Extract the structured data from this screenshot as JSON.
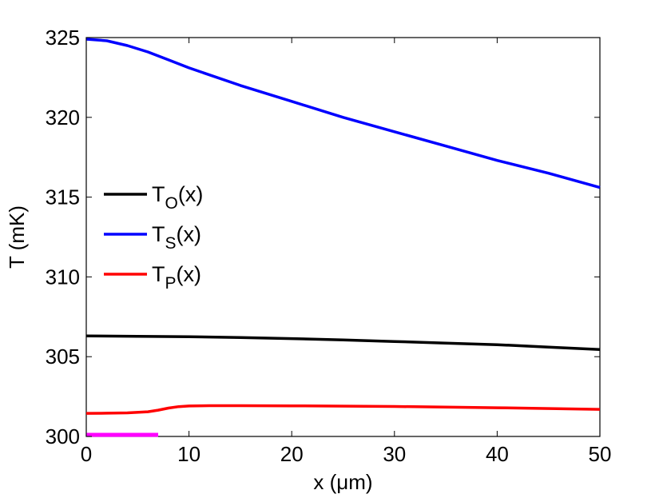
{
  "chart_data": {
    "type": "line",
    "title": "",
    "xlabel": "x (μm)",
    "ylabel": "T (mK)",
    "xlim": [
      0,
      50
    ],
    "ylim": [
      300,
      325
    ],
    "xticks": [
      0,
      10,
      20,
      30,
      40,
      50
    ],
    "yticks": [
      300,
      305,
      310,
      315,
      320,
      325
    ],
    "grid": false,
    "legend_position": "left",
    "series": [
      {
        "key": "TO",
        "legend": {
          "main": "T",
          "sub": "O",
          "suffix": "(x)"
        },
        "color": "#000000",
        "x": [
          0,
          5,
          10,
          15,
          20,
          25,
          30,
          35,
          40,
          45,
          50
        ],
        "y": [
          306.3,
          306.28,
          306.25,
          306.2,
          306.13,
          306.05,
          305.95,
          305.85,
          305.75,
          305.6,
          305.45
        ]
      },
      {
        "key": "TS",
        "legend": {
          "main": "T",
          "sub": "S",
          "suffix": "(x)"
        },
        "color": "#0000ff",
        "x": [
          0,
          2,
          4,
          6,
          8,
          10,
          15,
          20,
          25,
          30,
          35,
          40,
          45,
          50
        ],
        "y": [
          324.9,
          324.8,
          324.5,
          324.1,
          323.6,
          323.1,
          322.0,
          321.0,
          320.0,
          319.1,
          318.2,
          317.3,
          316.5,
          315.6
        ]
      },
      {
        "key": "TP",
        "legend": {
          "main": "T",
          "sub": "P",
          "suffix": "(x)"
        },
        "color": "#ff0000",
        "x": [
          0,
          2,
          4,
          6,
          7,
          8,
          9,
          10,
          12,
          15,
          20,
          30,
          40,
          50
        ],
        "y": [
          301.45,
          301.46,
          301.48,
          301.55,
          301.65,
          301.78,
          301.87,
          301.91,
          301.93,
          301.93,
          301.92,
          301.88,
          301.8,
          301.7
        ]
      }
    ],
    "annotations": [
      {
        "type": "segment",
        "color": "#ff00ff",
        "x": [
          0,
          7
        ],
        "y": 300
      }
    ]
  }
}
